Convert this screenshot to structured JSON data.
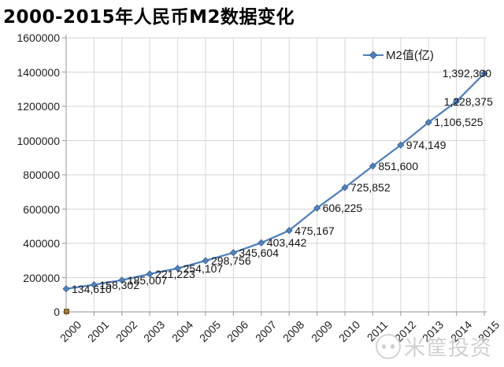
{
  "page": {
    "title": "2000-2015年人民币M2数据变化"
  },
  "watermark": {
    "text": "米筐投资"
  },
  "colors": {
    "series_line": "#4F81BD",
    "series_marker_edge": "#3A6491",
    "grid": "#D6D6D6",
    "axis": "#A6A6A6",
    "extra_marker": "#B98F44",
    "label_text": "#141414",
    "watermark_gray": "#D0D0D0"
  },
  "chart_data": {
    "type": "line",
    "title": "2000-2015年人民币M2数据变化",
    "legend_entries": [
      "M2值(亿)"
    ],
    "legend_position": "top-right-inside",
    "grid": {
      "horizontal": true,
      "vertical": true
    },
    "x": [
      "2000",
      "2001",
      "2002",
      "2003",
      "2004",
      "2005",
      "2006",
      "2007",
      "2008",
      "2009",
      "2010",
      "2011",
      "2012",
      "2013",
      "2014",
      "2015"
    ],
    "series": [
      {
        "name": "M2值(亿)",
        "color": "#4F81BD",
        "marker": "diamond",
        "values": [
          134610,
          158302,
          185007,
          221223,
          254107,
          298756,
          345604,
          403442,
          475167,
          606225,
          725852,
          851600,
          974149,
          1106525,
          1228375,
          1392300
        ],
        "data_labels": [
          "134,610",
          "158,302",
          "185,007",
          "221,223",
          "254,107",
          "298,756",
          "345,604",
          "403,442",
          "475,167",
          "606,225",
          "725,852",
          "851,600",
          "974,149",
          "1,106,525",
          "1,228,375",
          "1,392,300"
        ]
      }
    ],
    "extra_point": {
      "x": "2000",
      "value": 0,
      "marker": "square",
      "color": "#B98F44"
    },
    "y_axis": {
      "min": 0,
      "max": 1600000,
      "step": 200000,
      "tick_labels": [
        "0",
        "200000",
        "400000",
        "600000",
        "800000",
        "1000000",
        "1200000",
        "1400000",
        "1600000"
      ]
    },
    "x_axis": {
      "label_rotation": -45
    }
  }
}
